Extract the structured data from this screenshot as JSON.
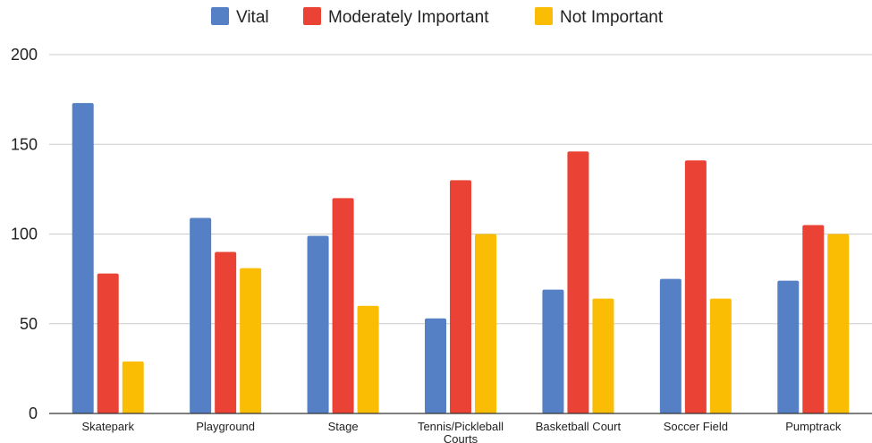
{
  "chart_data": {
    "type": "bar",
    "categories": [
      "Skatepark",
      "Playground",
      "Stage",
      "Tennis/Pickleball Courts",
      "Basketball Court",
      "Soccer Field",
      "Pumptrack"
    ],
    "category_lines": [
      [
        "Skatepark"
      ],
      [
        "Playground"
      ],
      [
        "Stage"
      ],
      [
        "Tennis/Pickleball",
        "Courts"
      ],
      [
        "Basketball Court"
      ],
      [
        "Soccer Field"
      ],
      [
        "Pumptrack"
      ]
    ],
    "series": [
      {
        "name": "Vital",
        "color": "#5680C5",
        "values": [
          173,
          109,
          99,
          53,
          69,
          75,
          74
        ]
      },
      {
        "name": "Moderately Important",
        "color": "#EA4335",
        "values": [
          78,
          90,
          120,
          130,
          146,
          141,
          105
        ]
      },
      {
        "name": "Not Important",
        "color": "#FBBC04",
        "values": [
          29,
          81,
          60,
          100,
          64,
          64,
          100
        ]
      }
    ],
    "yticks": [
      "0",
      "50",
      "100",
      "150",
      "200"
    ],
    "ylim": [
      0,
      200
    ],
    "grid": true,
    "legend_position": "top-center"
  }
}
